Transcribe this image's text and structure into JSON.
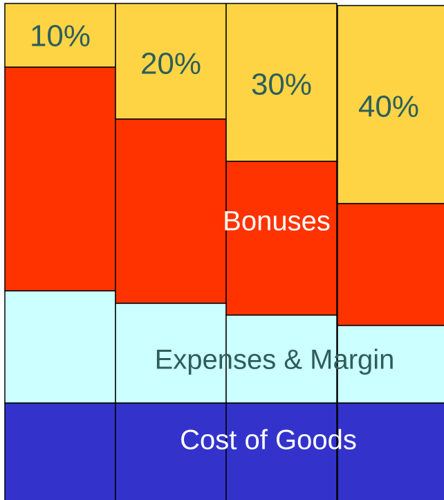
{
  "columns": [
    {
      "label": "10%"
    },
    {
      "label": "20%"
    },
    {
      "label": "30%"
    },
    {
      "label": "40%"
    }
  ],
  "layers": {
    "bonuses": "Bonuses",
    "expenses": "Expenses & Margin",
    "cost": "Cost of Goods"
  }
}
